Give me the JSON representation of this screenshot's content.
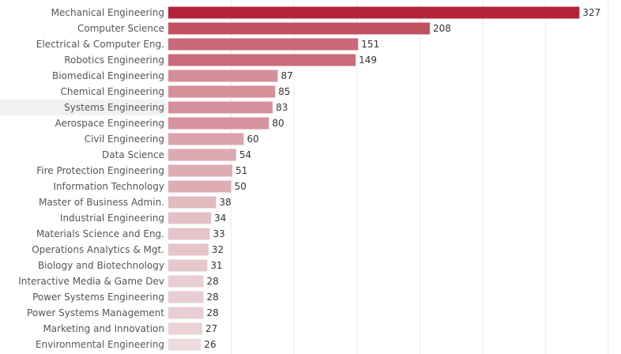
{
  "chart_data": {
    "type": "bar",
    "orientation": "horizontal",
    "categories": [
      "Mechanical Engineering",
      "Computer Science",
      "Electrical & Computer Eng.",
      "Robotics Engineering",
      "Biomedical Engineering",
      "Chemical Engineering",
      "Systems Engineering",
      "Aerospace Engineering",
      "Civil Engineering",
      "Data Science",
      "Fire Protection Engineering",
      "Information Technology",
      "Master of Business Admin.",
      "Industrial Engineering",
      "Materials Science and Eng.",
      "Operations Analytics & Mgt.",
      "Biology and Biotechnology",
      "Interactive Media & Game Dev",
      "Power Systems Engineering",
      "Power Systems Management",
      "Marketing and Innovation",
      "Environmental Engineering"
    ],
    "values": [
      327,
      208,
      151,
      149,
      87,
      85,
      83,
      80,
      60,
      54,
      51,
      50,
      38,
      34,
      33,
      32,
      31,
      28,
      28,
      28,
      27,
      26
    ],
    "xlim": [
      0,
      350
    ],
    "grid": "vertical",
    "data_labels": true,
    "highlighted_category": "Systems Engineering",
    "color_scale": {
      "low": "#ecdadc",
      "high": "#b3243a"
    },
    "highlight_row_color": "#f2f2f2"
  }
}
